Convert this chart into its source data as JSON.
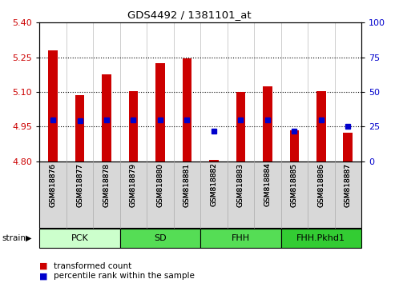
{
  "title": "GDS4492 / 1381101_at",
  "samples": [
    "GSM818876",
    "GSM818877",
    "GSM818878",
    "GSM818879",
    "GSM818880",
    "GSM818881",
    "GSM818882",
    "GSM818883",
    "GSM818884",
    "GSM818885",
    "GSM818886",
    "GSM818887"
  ],
  "red_values": [
    5.28,
    5.085,
    5.175,
    5.105,
    5.225,
    5.245,
    4.805,
    5.1,
    5.125,
    4.935,
    5.105,
    4.925
  ],
  "blue_values_pct": [
    30,
    29,
    30,
    30,
    30,
    30,
    22,
    30,
    30,
    22,
    30,
    25
  ],
  "ylim_left": [
    4.8,
    5.4
  ],
  "ylim_right": [
    0,
    100
  ],
  "yticks_left": [
    4.8,
    4.95,
    5.1,
    5.25,
    5.4
  ],
  "yticks_right": [
    0,
    25,
    50,
    75,
    100
  ],
  "grid_values": [
    4.95,
    5.1,
    5.25
  ],
  "bar_bottom": 4.8,
  "bar_color": "#cc0000",
  "dot_color": "#0000cc",
  "strain_groups": [
    {
      "label": "PCK",
      "start": 0,
      "end": 2,
      "color": "#ccffcc"
    },
    {
      "label": "SD",
      "start": 3,
      "end": 5,
      "color": "#55dd55"
    },
    {
      "label": "FHH",
      "start": 6,
      "end": 8,
      "color": "#55dd55"
    },
    {
      "label": "FHH.Pkhd1",
      "start": 9,
      "end": 11,
      "color": "#33cc33"
    }
  ],
  "legend_items": [
    {
      "label": "transformed count",
      "color": "#cc0000"
    },
    {
      "label": "percentile rank within the sample",
      "color": "#0000cc"
    }
  ],
  "tick_label_color_left": "#cc0000",
  "tick_label_color_right": "#0000cc",
  "bg_color": "#e8e8e8",
  "plot_bg": "#ffffff"
}
